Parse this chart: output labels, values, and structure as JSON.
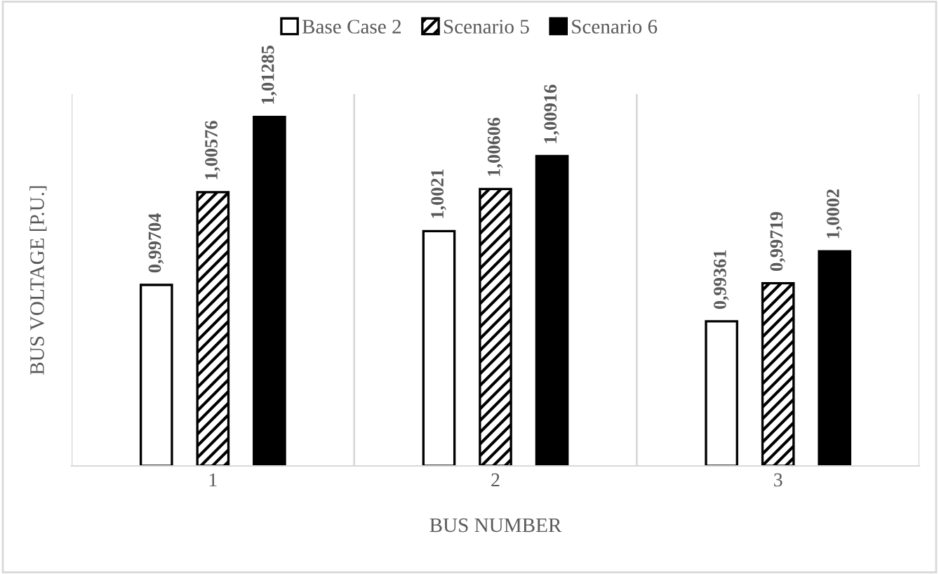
{
  "chart_data": {
    "type": "bar",
    "xlabel": "BUS NUMBER",
    "ylabel": "BUS VOLTAGE [P.U.]",
    "categories": [
      "1",
      "2",
      "3"
    ],
    "series": [
      {
        "name": "Base Case 2",
        "color": "#ffffff",
        "values": [
          0.99704,
          1.0021,
          0.99361
        ],
        "value_labels": [
          "0,99704",
          "1,0021",
          "0,99361"
        ]
      },
      {
        "name": "Scenario 5",
        "color": "#000000",
        "values": [
          1.00576,
          1.00606,
          0.99719
        ],
        "value_labels": [
          "1,00576",
          "1,00606",
          "0,99719"
        ]
      },
      {
        "name": "Scenario 6",
        "color": "#000000",
        "values": [
          1.01285,
          1.00916,
          1.0002
        ],
        "value_labels": [
          "1,01285",
          "1,00916",
          "1,0002"
        ]
      }
    ],
    "ylim": [
      0.98,
      1.015
    ],
    "grid": "x",
    "legend": "top",
    "tick_labels": "x"
  }
}
